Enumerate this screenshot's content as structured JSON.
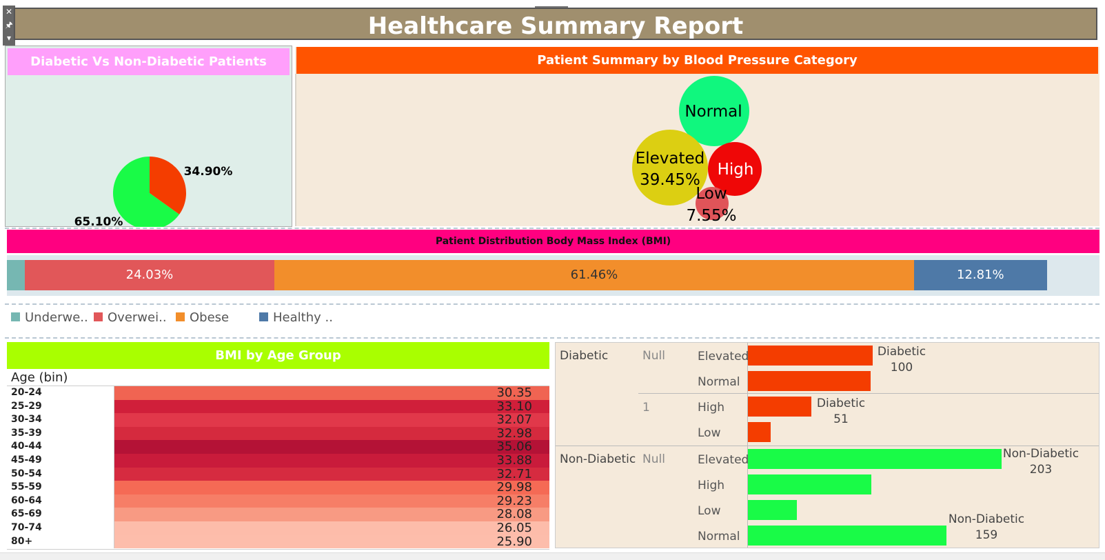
{
  "header": {
    "title": "Healthcare Summary Report",
    "controls": [
      "✕",
      "🖈",
      "▾"
    ]
  },
  "colors": {
    "title_bg": "#a08f6e",
    "diabetes_head": "#ff9ffb",
    "bp_head": "#ff5400",
    "bmi_head": "#ff0080",
    "age_head": "#a9ff00",
    "diabetic": "#f43d00",
    "non_diabetic": "#19fb47"
  },
  "diabetes_panel": {
    "title": "Diabetic Vs Non-Diabetic Patients",
    "chart_data": {
      "type": "pie",
      "title": "Diabetic Vs Non-Diabetic Patients",
      "slices": [
        {
          "label": "34.90%",
          "value": 34.9,
          "color": "#f43d00"
        },
        {
          "label": "65.10%",
          "value": 65.1,
          "color": "#19fb47"
        }
      ]
    }
  },
  "bp_panel": {
    "title": "Patient Summary by Blood Pressure Category",
    "chart_data": {
      "type": "bubble",
      "title": "Patient Summary by Blood Pressure Category",
      "bubbles": [
        {
          "category": "Normal",
          "label": "Normal",
          "color": "#10f77e"
        },
        {
          "category": "Elevated",
          "label": "Elevated",
          "value_label": "39.45%",
          "value": 39.45,
          "color": "#dccf12"
        },
        {
          "category": "High",
          "label": "High",
          "color": "#ef0707"
        },
        {
          "category": "Low",
          "label": "Low",
          "value_label": "7.55%",
          "value": 7.55,
          "color": "#e05459"
        }
      ]
    }
  },
  "bmi_panel": {
    "title": "Patient Distribution Body Mass Index (BMI)",
    "chart_data": {
      "type": "bar",
      "orientation": "stacked-horizontal",
      "title": "Patient Distribution Body Mass Index (BMI)",
      "segments": [
        {
          "category": "Underweight",
          "value": 1.7,
          "label": "",
          "color": "#76b7b2"
        },
        {
          "category": "Overweight",
          "value": 24.03,
          "label": "24.03%",
          "color": "#e15759"
        },
        {
          "category": "Obese",
          "value": 61.46,
          "label": "61.46%",
          "color": "#f28e2b"
        },
        {
          "category": "Healthy",
          "value": 12.81,
          "label": "12.81%",
          "color": "#4e79a7"
        }
      ]
    },
    "legend": [
      {
        "label": "Underwe..",
        "color": "#76b7b2"
      },
      {
        "label": "Overwei..",
        "color": "#e15759"
      },
      {
        "label": "Obese",
        "color": "#f28e2b"
      },
      {
        "label": "Healthy ..",
        "color": "#4e79a7"
      }
    ]
  },
  "age_panel": {
    "title": "BMI by Age Group",
    "column_header": "Age (bin)",
    "chart_data": {
      "type": "heatmap",
      "title": "BMI by Age Group",
      "xlabel": "Age (bin)",
      "rows": [
        {
          "age": "20-24",
          "value": "30.35",
          "color": "#f06452"
        },
        {
          "age": "25-29",
          "value": "33.10",
          "color": "#d01f3a"
        },
        {
          "age": "30-34",
          "value": "32.07",
          "color": "#e1384a"
        },
        {
          "age": "35-39",
          "value": "32.98",
          "color": "#d52a3e"
        },
        {
          "age": "40-44",
          "value": "35.06",
          "color": "#b41236"
        },
        {
          "age": "45-49",
          "value": "33.88",
          "color": "#c91b3b"
        },
        {
          "age": "50-54",
          "value": "32.71",
          "color": "#d62b40"
        },
        {
          "age": "55-59",
          "value": "29.98",
          "color": "#f56a55"
        },
        {
          "age": "60-64",
          "value": "29.23",
          "color": "#f67e67"
        },
        {
          "age": "65-69",
          "value": "28.08",
          "color": "#f89a83"
        },
        {
          "age": "70-74",
          "value": "26.05",
          "color": "#fdbcaa"
        },
        {
          "age": "80+",
          "value": "25.90",
          "color": "#fdbdab"
        }
      ]
    }
  },
  "status_panel": {
    "chart_data": {
      "type": "bar",
      "orientation": "horizontal",
      "groups": [
        {
          "status": "Diabetic",
          "sub": "Null",
          "category": "Elevated",
          "value": 100,
          "color": "#f43d00"
        },
        {
          "status": "Diabetic",
          "sub": "Null",
          "category": "Normal",
          "value": 98,
          "color": "#f43d00"
        },
        {
          "status": "Diabetic",
          "sub": "1",
          "category": "High",
          "value": 51,
          "color": "#f43d00"
        },
        {
          "status": "Diabetic",
          "sub": "1",
          "category": "Low",
          "value": 18,
          "color": "#f43d00"
        },
        {
          "status": "Non-Diabetic",
          "sub": "Null",
          "category": "Elevated",
          "value": 203,
          "color": "#19fb47"
        },
        {
          "status": "Non-Diabetic",
          "sub": "Null",
          "category": "High",
          "value": 99,
          "color": "#19fb47"
        },
        {
          "status": "Non-Diabetic",
          "sub": "Null",
          "category": "Low",
          "value": 39,
          "color": "#19fb47"
        },
        {
          "status": "Non-Diabetic",
          "sub": "Null",
          "category": "Normal",
          "value": 159,
          "color": "#19fb47"
        }
      ],
      "data_labels": [
        {
          "line1": "Diabetic",
          "line2": "100"
        },
        {
          "line1": "Diabetic",
          "line2": "51"
        },
        {
          "line1": "Non-Diabetic",
          "line2": "203"
        },
        {
          "line1": "Non-Diabetic",
          "line2": "159"
        }
      ]
    },
    "labels": {
      "diabetic": "Diabetic",
      "non_diabetic": "Non-Diabetic",
      "null": "Null",
      "one": "1",
      "elevated": "Elevated",
      "normal": "Normal",
      "high": "High",
      "low": "Low"
    }
  }
}
